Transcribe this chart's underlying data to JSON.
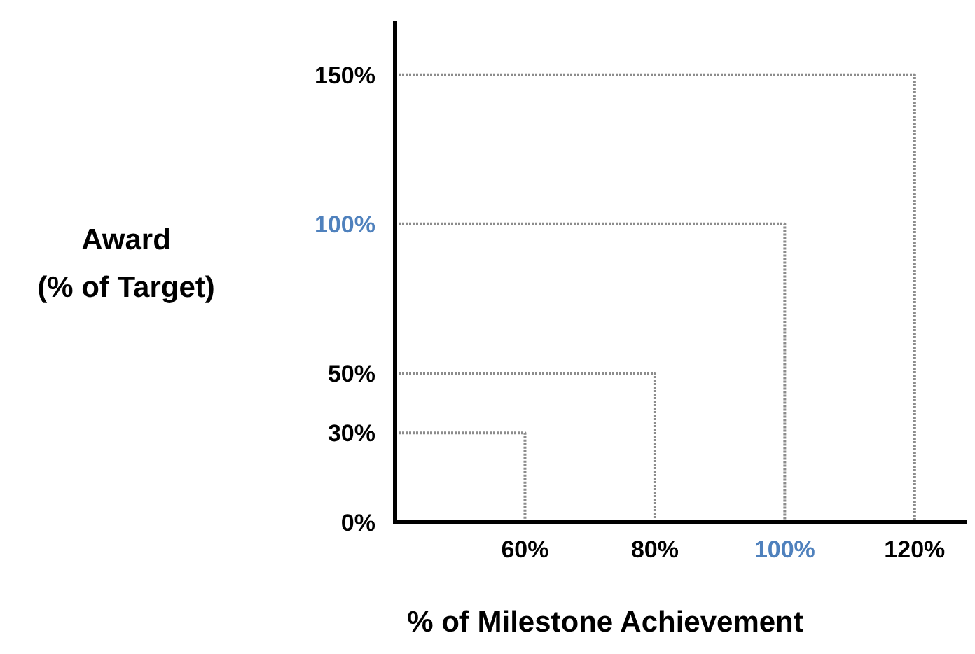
{
  "chart_data": {
    "type": "line",
    "xlabel": "% of Milestone Achievement",
    "ylabel": "Award\n(% of Target)",
    "line_style": "dotted",
    "marker": "none",
    "series": [
      {
        "color": "#8c8c8c",
        "x": [
          40,
          60,
          60
        ],
        "values": [
          30,
          30,
          0
        ]
      },
      {
        "color": "#8c8c8c",
        "x": [
          40,
          80,
          80
        ],
        "values": [
          50,
          50,
          0
        ]
      },
      {
        "color": "#8c8c8c",
        "x": [
          40,
          100,
          100
        ],
        "values": [
          100,
          100,
          0
        ]
      },
      {
        "color": "#8c8c8c",
        "x": [
          40,
          120,
          120
        ],
        "values": [
          150,
          150,
          0
        ]
      }
    ],
    "xlim": [
      40,
      128
    ],
    "xticks": [
      {
        "value": 60,
        "label": "60%"
      },
      {
        "value": 80,
        "label": "80%"
      },
      {
        "value": 100,
        "label": "100%"
      },
      {
        "value": 120,
        "label": "120%"
      }
    ],
    "ylim": [
      0,
      168
    ],
    "yticks": [
      {
        "value": 0,
        "label": "0%"
      },
      {
        "value": 30,
        "label": "30%"
      },
      {
        "value": 50,
        "label": "50%"
      },
      {
        "value": 100,
        "label": "100%"
      },
      {
        "value": 150,
        "label": "150%"
      }
    ]
  }
}
